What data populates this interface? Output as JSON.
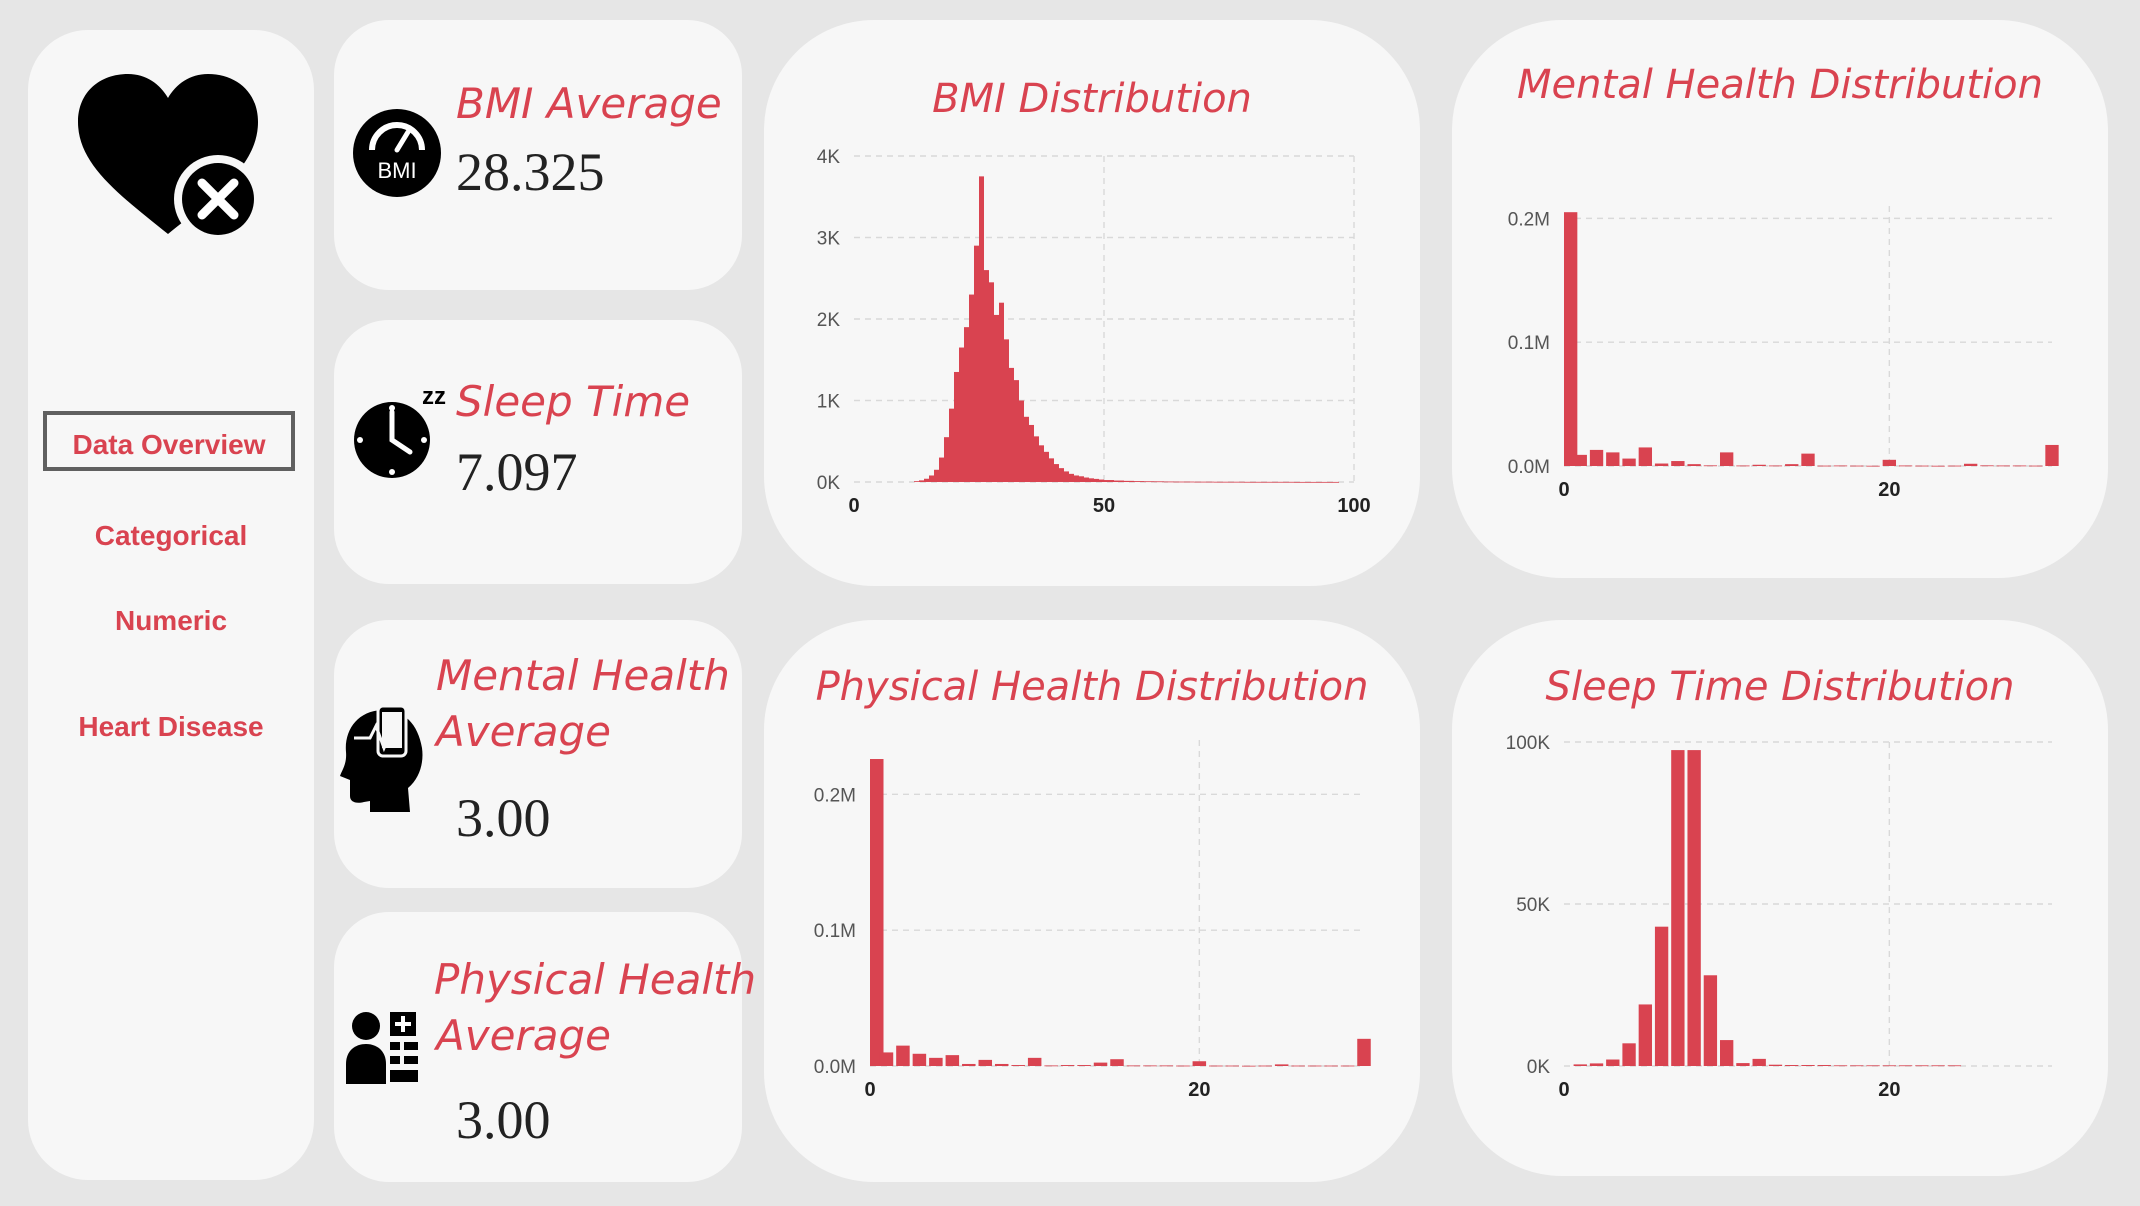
{
  "nav": {
    "items": [
      {
        "label": "Data Overview",
        "active": true
      },
      {
        "label": "Categorical",
        "active": false
      },
      {
        "label": "Numeric",
        "active": false
      },
      {
        "label": "Heart Disease",
        "active": false
      }
    ],
    "logo_icon": "heart-x-icon"
  },
  "kpis": {
    "bmi": {
      "title": "BMI Average",
      "value": "28.325",
      "icon": "bmi-gauge-icon",
      "icon_text": "BMI"
    },
    "sleep": {
      "title": "Sleep Time",
      "value": "7.097",
      "icon": "sleep-clock-icon",
      "icon_text": "zz"
    },
    "mental": {
      "title_line1": "Mental Health",
      "title_line2": "Average",
      "value": "3.00",
      "icon": "head-phone-icon"
    },
    "physical": {
      "title_line1": "Physical Health",
      "title_line2": "Average",
      "value": "3.00",
      "icon": "doctor-icon"
    }
  },
  "colors": {
    "accent": "#d94350",
    "card": "#f7f7f7",
    "background": "#e6e6e6"
  },
  "chart_data": [
    {
      "id": "bmi",
      "type": "bar",
      "title": "BMI Distribution",
      "xlim": [
        0,
        100
      ],
      "ylim": [
        0,
        4000
      ],
      "xticks": [
        {
          "v": 0,
          "label": "0"
        },
        {
          "v": 50,
          "label": "50"
        },
        {
          "v": 100,
          "label": "100"
        }
      ],
      "yticks": [
        {
          "v": 0,
          "label": "0K"
        },
        {
          "v": 1000,
          "label": "1K"
        },
        {
          "v": 2000,
          "label": "2K"
        },
        {
          "v": 3000,
          "label": "3K"
        },
        {
          "v": 4000,
          "label": "4K"
        }
      ],
      "grid": true,
      "x": [
        12,
        13,
        14,
        15,
        16,
        17,
        18,
        19,
        20,
        21,
        22,
        23,
        24,
        25,
        26,
        27,
        28,
        29,
        30,
        31,
        32,
        33,
        34,
        35,
        36,
        37,
        38,
        39,
        40,
        41,
        42,
        43,
        44,
        45,
        46,
        47,
        48,
        49,
        50,
        52,
        54,
        56,
        58,
        60,
        62,
        64,
        66,
        68,
        70,
        72,
        74,
        76,
        78,
        80,
        82,
        84,
        86,
        88,
        90,
        92,
        94,
        96
      ],
      "values": [
        10,
        20,
        40,
        80,
        150,
        300,
        550,
        900,
        1350,
        1650,
        1900,
        2300,
        2900,
        3750,
        2600,
        2450,
        2050,
        2200,
        1750,
        1400,
        1250,
        1000,
        800,
        700,
        560,
        450,
        370,
        290,
        220,
        170,
        130,
        100,
        80,
        70,
        55,
        45,
        38,
        30,
        24,
        18,
        14,
        11,
        9,
        8,
        6,
        5,
        5,
        4,
        4,
        3,
        3,
        3,
        2,
        2,
        2,
        2,
        2,
        1,
        1,
        1,
        1,
        1
      ]
    },
    {
      "id": "mental",
      "type": "bar",
      "title": "Mental Health Distribution",
      "xlim": [
        0,
        30
      ],
      "ylim": [
        0,
        210000
      ],
      "xticks": [
        {
          "v": 0,
          "label": "0"
        },
        {
          "v": 20,
          "label": "20"
        }
      ],
      "yticks": [
        {
          "v": 0,
          "label": "0.0M"
        },
        {
          "v": 100000,
          "label": "0.1M"
        },
        {
          "v": 200000,
          "label": "0.2M"
        }
      ],
      "grid": true,
      "x": [
        0,
        1,
        2,
        3,
        4,
        5,
        6,
        7,
        8,
        9,
        10,
        11,
        12,
        13,
        14,
        15,
        16,
        17,
        18,
        19,
        20,
        21,
        22,
        23,
        24,
        25,
        26,
        27,
        28,
        29,
        30
      ],
      "values": [
        205000,
        9000,
        13000,
        11000,
        6000,
        15000,
        2000,
        4000,
        1500,
        500,
        11000,
        400,
        1000,
        400,
        1500,
        10000,
        300,
        400,
        300,
        200,
        5000,
        400,
        300,
        200,
        300,
        1800,
        500,
        400,
        400,
        300,
        17000
      ]
    },
    {
      "id": "physical",
      "type": "bar",
      "title": "Physical Health Distribution",
      "xlim": [
        0,
        30
      ],
      "ylim": [
        0,
        240000
      ],
      "xticks": [
        {
          "v": 0,
          "label": "0"
        },
        {
          "v": 20,
          "label": "20"
        }
      ],
      "yticks": [
        {
          "v": 0,
          "label": "0.0M"
        },
        {
          "v": 100000,
          "label": "0.1M"
        },
        {
          "v": 200000,
          "label": "0.2M"
        }
      ],
      "grid": true,
      "x": [
        0,
        1,
        2,
        3,
        4,
        5,
        6,
        7,
        8,
        9,
        10,
        11,
        12,
        13,
        14,
        15,
        16,
        17,
        18,
        19,
        20,
        21,
        22,
        23,
        24,
        25,
        26,
        27,
        28,
        29,
        30
      ],
      "values": [
        226000,
        10000,
        15000,
        9000,
        6000,
        8000,
        1500,
        4500,
        1500,
        700,
        6000,
        400,
        700,
        700,
        2500,
        5000,
        400,
        400,
        400,
        300,
        3500,
        300,
        300,
        200,
        300,
        1200,
        300,
        300,
        300,
        300,
        20000
      ]
    },
    {
      "id": "sleep",
      "type": "bar",
      "title": "Sleep Time Distribution",
      "xlim": [
        0,
        30
      ],
      "ylim": [
        0,
        100000
      ],
      "xticks": [
        {
          "v": 0,
          "label": "0"
        },
        {
          "v": 20,
          "label": "20"
        }
      ],
      "yticks": [
        {
          "v": 0,
          "label": "0K"
        },
        {
          "v": 50000,
          "label": "50K"
        },
        {
          "v": 100000,
          "label": "100K"
        }
      ],
      "grid": true,
      "x": [
        1,
        2,
        3,
        4,
        5,
        6,
        7,
        8,
        9,
        10,
        11,
        12,
        13,
        14,
        15,
        16,
        17,
        18,
        19,
        20,
        21,
        22,
        23,
        24
      ],
      "values": [
        500,
        800,
        2000,
        7000,
        19000,
        43000,
        97500,
        97500,
        28000,
        8000,
        900,
        2200,
        400,
        300,
        300,
        300,
        200,
        200,
        200,
        200,
        200,
        200,
        200,
        200
      ]
    }
  ]
}
